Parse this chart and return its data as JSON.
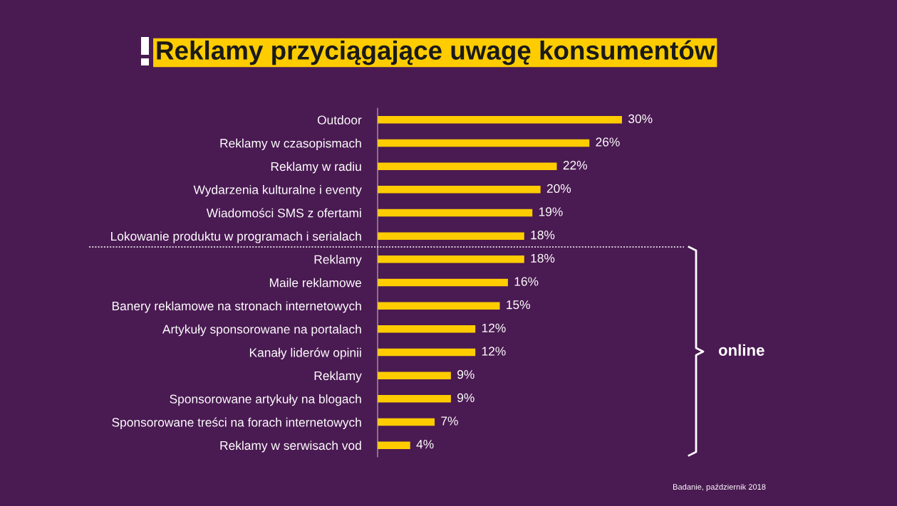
{
  "chart_data": {
    "type": "bar",
    "orientation": "horizontal",
    "title": "Reklamy przyciągające uwagę konsumentów",
    "categories": [
      "Outdoor",
      "Reklamy w czasopismach",
      "Reklamy w radiu",
      "Wydarzenia kulturalne i eventy",
      "Wiadomości SMS z ofertami",
      "Lokowanie produktu w programach i serialach",
      "Reklamy",
      "Maile reklamowe",
      "Banery reklamowe na stronach internetowych",
      "Artykuły sponsorowane na portalach",
      "Kanały liderów opinii",
      "Reklamy",
      "Sponsorowane artykuły na blogach",
      "Sponsorowane treści na forach internetowych",
      "Reklamy w serwisach vod"
    ],
    "values": [
      30,
      26,
      22,
      20,
      19,
      18,
      18,
      16,
      15,
      12,
      12,
      9,
      9,
      7,
      4
    ],
    "value_labels": [
      "30%",
      "26%",
      "22%",
      "20%",
      "19%",
      "18%",
      "18%",
      "16%",
      "15%",
      "12%",
      "12%",
      "9%",
      "9%",
      "7%",
      "4%"
    ],
    "color": "#ffcc00",
    "annotations": [
      "online",
      "Badanie, październik 2018"
    ],
    "grid": false,
    "legend": false
  }
}
